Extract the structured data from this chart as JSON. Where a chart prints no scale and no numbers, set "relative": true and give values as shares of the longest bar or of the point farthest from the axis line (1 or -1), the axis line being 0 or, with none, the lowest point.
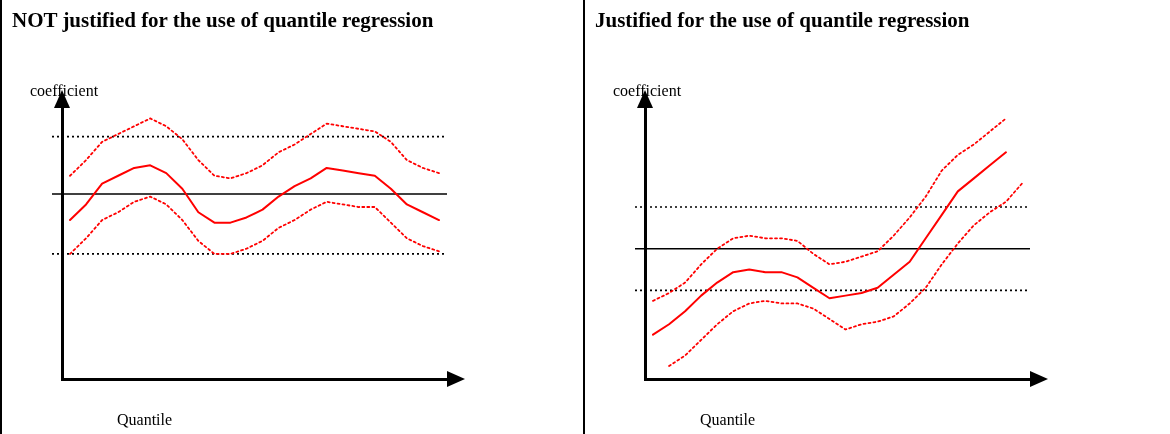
{
  "chart_data": [
    {
      "type": "line",
      "title": "NOT justified for the use of quantile regression",
      "xlabel": "Quantile",
      "ylabel": "coefficient",
      "relative": true,
      "grid": false,
      "legend": false,
      "marker": "none",
      "categories": [
        null,
        null,
        null,
        null,
        null,
        null,
        null,
        null,
        null,
        null,
        null,
        null,
        null,
        null,
        null,
        null,
        null,
        null,
        null,
        null,
        null,
        null,
        null,
        null
      ],
      "series": [
        {
          "color": "#ff0000",
          "line_style": "solid",
          "values": [
            0.61,
            0.67,
            0.75,
            0.78,
            0.81,
            0.82,
            0.79,
            0.73,
            0.64,
            0.6,
            0.6,
            0.62,
            0.65,
            0.7,
            0.74,
            0.77,
            0.81,
            0.8,
            0.79,
            0.78,
            0.73,
            0.67,
            0.64,
            0.61
          ]
        },
        {
          "color": "#ff0000",
          "line_style": "dotted",
          "values": [
            0.78,
            0.84,
            0.91,
            0.94,
            0.97,
            1.0,
            0.97,
            0.92,
            0.84,
            0.78,
            0.77,
            0.79,
            0.82,
            0.87,
            0.9,
            0.94,
            0.98,
            0.97,
            0.96,
            0.95,
            0.91,
            0.84,
            0.81,
            0.79
          ]
        },
        {
          "color": "#ff0000",
          "line_style": "dotted",
          "values": [
            0.48,
            0.54,
            0.61,
            0.64,
            0.68,
            0.7,
            0.67,
            0.61,
            0.53,
            0.48,
            0.48,
            0.5,
            0.53,
            0.58,
            0.61,
            0.65,
            0.68,
            0.67,
            0.66,
            0.66,
            0.6,
            0.54,
            0.51,
            0.49
          ]
        }
      ],
      "ref_lines": [
        {
          "axis": "y",
          "value": 0.71,
          "color": "#000000",
          "line_style": "solid"
        },
        {
          "axis": "y",
          "value": 0.93,
          "color": "#000000",
          "line_style": "dotted"
        },
        {
          "axis": "y",
          "value": 0.48,
          "color": "#000000",
          "line_style": "dotted"
        }
      ]
    },
    {
      "type": "line",
      "title": "Justified for the use of quantile regression",
      "xlabel": "Quantile",
      "ylabel": "coefficient",
      "relative": true,
      "grid": false,
      "legend": false,
      "marker": "none",
      "categories": [
        null,
        null,
        null,
        null,
        null,
        null,
        null,
        null,
        null,
        null,
        null,
        null,
        null,
        null,
        null,
        null,
        null,
        null,
        null,
        null,
        null,
        null,
        null,
        null
      ],
      "series": [
        {
          "color": "#ff0000",
          "line_style": "solid",
          "values": [
            0.17,
            0.21,
            0.26,
            0.32,
            0.37,
            0.41,
            0.42,
            0.41,
            0.41,
            0.39,
            0.35,
            0.31,
            0.32,
            0.33,
            0.35,
            0.4,
            0.45,
            0.54,
            0.63,
            0.72,
            0.77,
            0.82,
            0.87,
            null
          ]
        },
        {
          "color": "#ff0000",
          "line_style": "dotted",
          "values": [
            0.3,
            0.33,
            0.37,
            0.44,
            0.5,
            0.54,
            0.55,
            0.54,
            0.54,
            0.53,
            0.48,
            0.44,
            0.45,
            0.47,
            0.49,
            0.55,
            0.62,
            0.7,
            0.8,
            0.86,
            0.9,
            0.95,
            1.0,
            null
          ]
        },
        {
          "color": "#ff0000",
          "line_style": "dotted",
          "values": [
            null,
            0.05,
            0.09,
            0.15,
            0.21,
            0.26,
            0.29,
            0.3,
            0.29,
            0.29,
            0.27,
            0.23,
            0.19,
            0.21,
            0.22,
            0.24,
            0.29,
            0.35,
            0.44,
            0.52,
            0.59,
            0.64,
            0.68,
            0.75
          ]
        }
      ],
      "ref_lines": [
        {
          "axis": "y",
          "value": 0.5,
          "color": "#000000",
          "line_style": "solid"
        },
        {
          "axis": "y",
          "value": 0.66,
          "color": "#000000",
          "line_style": "dotted"
        },
        {
          "axis": "y",
          "value": 0.34,
          "color": "#000000",
          "line_style": "dotted"
        }
      ]
    }
  ]
}
